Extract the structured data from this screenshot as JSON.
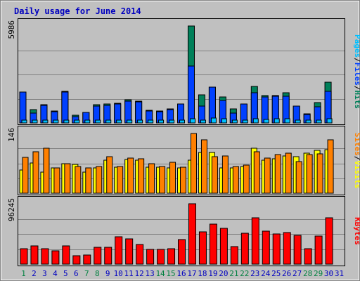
{
  "chart_data": {
    "type": "bar",
    "title": "Daily usage for June 2014",
    "categories": [
      "1",
      "2",
      "3",
      "4",
      "5",
      "6",
      "7",
      "8",
      "9",
      "10",
      "11",
      "12",
      "13",
      "14",
      "15",
      "16",
      "17",
      "18",
      "19",
      "20",
      "21",
      "22",
      "23",
      "24",
      "25",
      "26",
      "27",
      "28",
      "29",
      "30",
      "31"
    ],
    "weekend_days": [
      "1",
      "7",
      "8",
      "14",
      "15",
      "21",
      "22",
      "28",
      "29"
    ],
    "panels": [
      {
        "name": "hits-files-pages",
        "ymax_label": "5986",
        "ymax": 5986,
        "series": [
          {
            "name": "Hits",
            "color": "#00805a",
            "values": [
              1880,
              820,
              1110,
              750,
              1950,
              460,
              660,
              1110,
              1150,
              1230,
              1430,
              1350,
              770,
              720,
              870,
              1170,
              5986,
              1730,
              2230,
              1620,
              870,
              1190,
              2240,
              1700,
              1700,
              1880,
              1060,
              550,
              1240,
              2530,
              0
            ]
          },
          {
            "name": "Files",
            "color": "#0040ff",
            "values": [
              1920,
              620,
              1100,
              680,
              1920,
              400,
              660,
              1060,
              1080,
              1160,
              1340,
              1310,
              730,
              710,
              830,
              1150,
              3520,
              1060,
              2220,
              1380,
              600,
              1150,
              1880,
              1620,
              1630,
              1640,
              1040,
              500,
              1010,
              1950,
              0
            ]
          },
          {
            "name": "Pages",
            "color": "#00c0ff",
            "values": [
              130,
              100,
              130,
              120,
              150,
              90,
              90,
              140,
              130,
              140,
              170,
              150,
              120,
              130,
              140,
              150,
              240,
              170,
              300,
              240,
              130,
              170,
              260,
              200,
              250,
              270,
              160,
              100,
              160,
              270,
              0
            ]
          }
        ],
        "side_labels": [
          {
            "text": "Pages",
            "color": "#00c0ff"
          },
          {
            "text": "/",
            "color": "#000000"
          },
          {
            "text": "Files",
            "color": "#0040ff"
          },
          {
            "text": "/",
            "color": "#000000"
          },
          {
            "text": "Hits",
            "color": "#00805a"
          }
        ]
      },
      {
        "name": "visits-sites",
        "ymax_label": "146",
        "ymax": 146,
        "series": [
          {
            "name": "Visits",
            "color": "#ffff00",
            "values": [
              56,
              74,
              52,
              62,
              72,
              70,
              52,
              62,
              80,
              64,
              82,
              80,
              64,
              64,
              62,
              62,
              80,
              99,
              99,
              62,
              62,
              65,
              110,
              80,
              85,
              91,
              90,
              98,
              104,
              106,
              0
            ]
          },
          {
            "name": "Sites",
            "color": "#ff8000",
            "values": [
              87,
              102,
              110,
              62,
              72,
              66,
              61,
              66,
              90,
              66,
              86,
              85,
              72,
              65,
              75,
              64,
              146,
              131,
              90,
              91,
              66,
              68,
              102,
              86,
              95,
              98,
              78,
              95,
              96,
              130,
              0
            ]
          }
        ],
        "side_labels": [
          {
            "text": "Sites",
            "color": "#ff8000"
          },
          {
            "text": "/",
            "color": "#000000"
          },
          {
            "text": "Visits",
            "color": "#ffff00"
          }
        ]
      },
      {
        "name": "kbytes",
        "ymax_label": "96245",
        "ymax": 96245,
        "series": [
          {
            "name": "KBytes",
            "color": "#ff0000",
            "values": [
              24500,
              29000,
              25000,
              21500,
              29500,
              13000,
              14500,
              26500,
              26500,
              44000,
              40500,
              31000,
              24000,
              24000,
              24500,
              39000,
              96245,
              51500,
              64000,
              57000,
              28500,
              49500,
              73500,
              53000,
              48000,
              50500,
              45500,
              25000,
              44500,
              73500,
              0
            ]
          }
        ],
        "side_labels": [
          {
            "text": "KBytes",
            "color": "#ff0000"
          }
        ]
      }
    ],
    "colors": {
      "background": "#c0c0c0",
      "title": "#0000c0",
      "weekday_label": "#0000c0",
      "weekend_label": "#008040",
      "gridline": "#808080"
    }
  }
}
